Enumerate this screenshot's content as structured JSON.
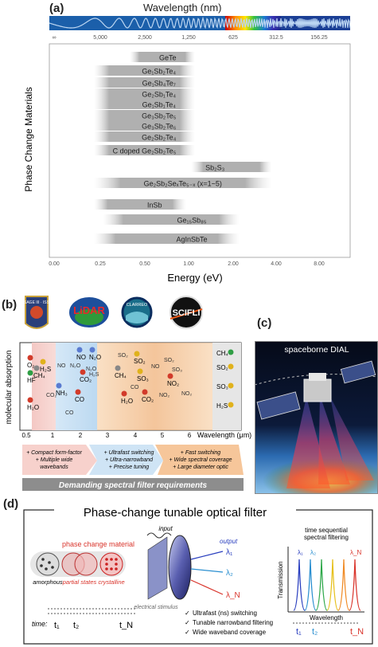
{
  "panel_a": {
    "label": "(a)",
    "wavelength_title": "Wavelength (nm)",
    "wavelength_ticks": [
      "∞",
      "5,000",
      "2,500",
      "1,250",
      "625",
      "312.5",
      "156.25"
    ],
    "energy_ticks": [
      "0.00",
      "0.25",
      "0.50",
      "1.00",
      "2.00",
      "4.00",
      "8.00"
    ],
    "x_title": "Energy (eV)",
    "y_title": "Phase Change Materials",
    "materials": [
      {
        "name": "GeTe",
        "start": 0.45,
        "end": 1.0
      },
      {
        "name": "Ge₁Sb₂Te₄",
        "start": 0.25,
        "end": 1.0
      },
      {
        "name": "Ge₁Sb₄Te₇",
        "start": 0.25,
        "end": 1.0
      },
      {
        "name": "Ge₂Sb₁Te₄",
        "start": 0.25,
        "end": 1.0
      },
      {
        "name": "Ge₁Sb₁Te₄",
        "start": 0.25,
        "end": 1.0
      },
      {
        "name": "Ge₃Sb₂Te₅",
        "start": 0.25,
        "end": 1.0
      },
      {
        "name": "Ge₃Sb₂Te₆",
        "start": 0.25,
        "end": 1.0
      },
      {
        "name": "Ge₂Sb₂Te₄",
        "start": 0.25,
        "end": 1.0
      },
      {
        "name": "C doped Ge₂Sb₂Te₅",
        "start": 0.25,
        "end": 1.0
      },
      {
        "name": "Sb₂S₃",
        "start": 1.2,
        "end": 3.5
      },
      {
        "name": "Ge₂Sb₂SeₓTe₅₋ₓ (x=1~5)",
        "start": 0.25,
        "end": 3.5
      },
      {
        "name": "InSb",
        "start": 0.25,
        "end": 0.9
      },
      {
        "name": "Ge₁₅Sb₈₅",
        "start": 0.3,
        "end": 2.0
      },
      {
        "name": "AgInSbTe",
        "start": 0.25,
        "end": 2.0
      }
    ]
  },
  "panel_b": {
    "label": "(b)",
    "logos": [
      "SAGE III · ISS",
      "LiDAR",
      "CLARREO",
      "SCIFLI"
    ],
    "y_title": "molecular absorption",
    "x_title": "Wavelength (μm)",
    "x_ticks": [
      "0.5",
      "1",
      "2",
      "3",
      "4",
      "5",
      "6"
    ],
    "molecules": [
      "O₂",
      "HF",
      "H₂O",
      "CH₄",
      "H₂S",
      "NO",
      "N₂O",
      "CO₂",
      "NH₃",
      "CO",
      "SO₂",
      "NO₂",
      "SO₃",
      "H₂O",
      "CO₂",
      "CH₄"
    ],
    "molecules_right": [
      "CH₄",
      "SO₂",
      "SO₃",
      "H₂S"
    ],
    "molecules_top": [
      "NO",
      "N₂O",
      "N₂O",
      "H₂S",
      "CO₂",
      "CO",
      "SO₂",
      "SO₂",
      "SO₃",
      "NO",
      "CO",
      "NO₂",
      "NO₂"
    ],
    "req_left": [
      "+ Compact form-factor",
      "+ Multiple wide",
      "wavebands"
    ],
    "req_mid": [
      "+ Ultrafast switching",
      "+ Ultra-narrowband",
      "+ Precise tuning"
    ],
    "req_right": [
      "+ Fast switching",
      "+ Wide spectral coverage",
      "+ Large diameter optic"
    ],
    "banner": "Demanding spectral filter requirements"
  },
  "panel_c": {
    "label": "(c)",
    "title": "spaceborne DIAL"
  },
  "panel_d": {
    "label": "(d)",
    "title": "Phase-change tunable optical filter",
    "pcm_label": "phase change material",
    "states": [
      "amorphous",
      "partial states",
      "crystalline"
    ],
    "input": "input",
    "output": "output",
    "stimulus": "electrical stimulus",
    "time_label": "time:",
    "times": [
      "t₁",
      "t₂",
      "t_N"
    ],
    "checks": [
      "Ultrafast (ns) switching",
      "Tunable narrowband filtering",
      "Wide waveband coverage"
    ],
    "chart_title_1": "time sequential",
    "chart_title_2": "spectral filtering",
    "chart_ylabel": "Transmission",
    "chart_xlabel": "Wavelength",
    "lambdas": [
      "λ₁",
      "λ₂",
      "λ_N"
    ]
  },
  "colors": {
    "blue": "#1a5fb4",
    "orange": "#f0a35a",
    "red": "#d9342b",
    "gray": "#9a9a9a"
  }
}
